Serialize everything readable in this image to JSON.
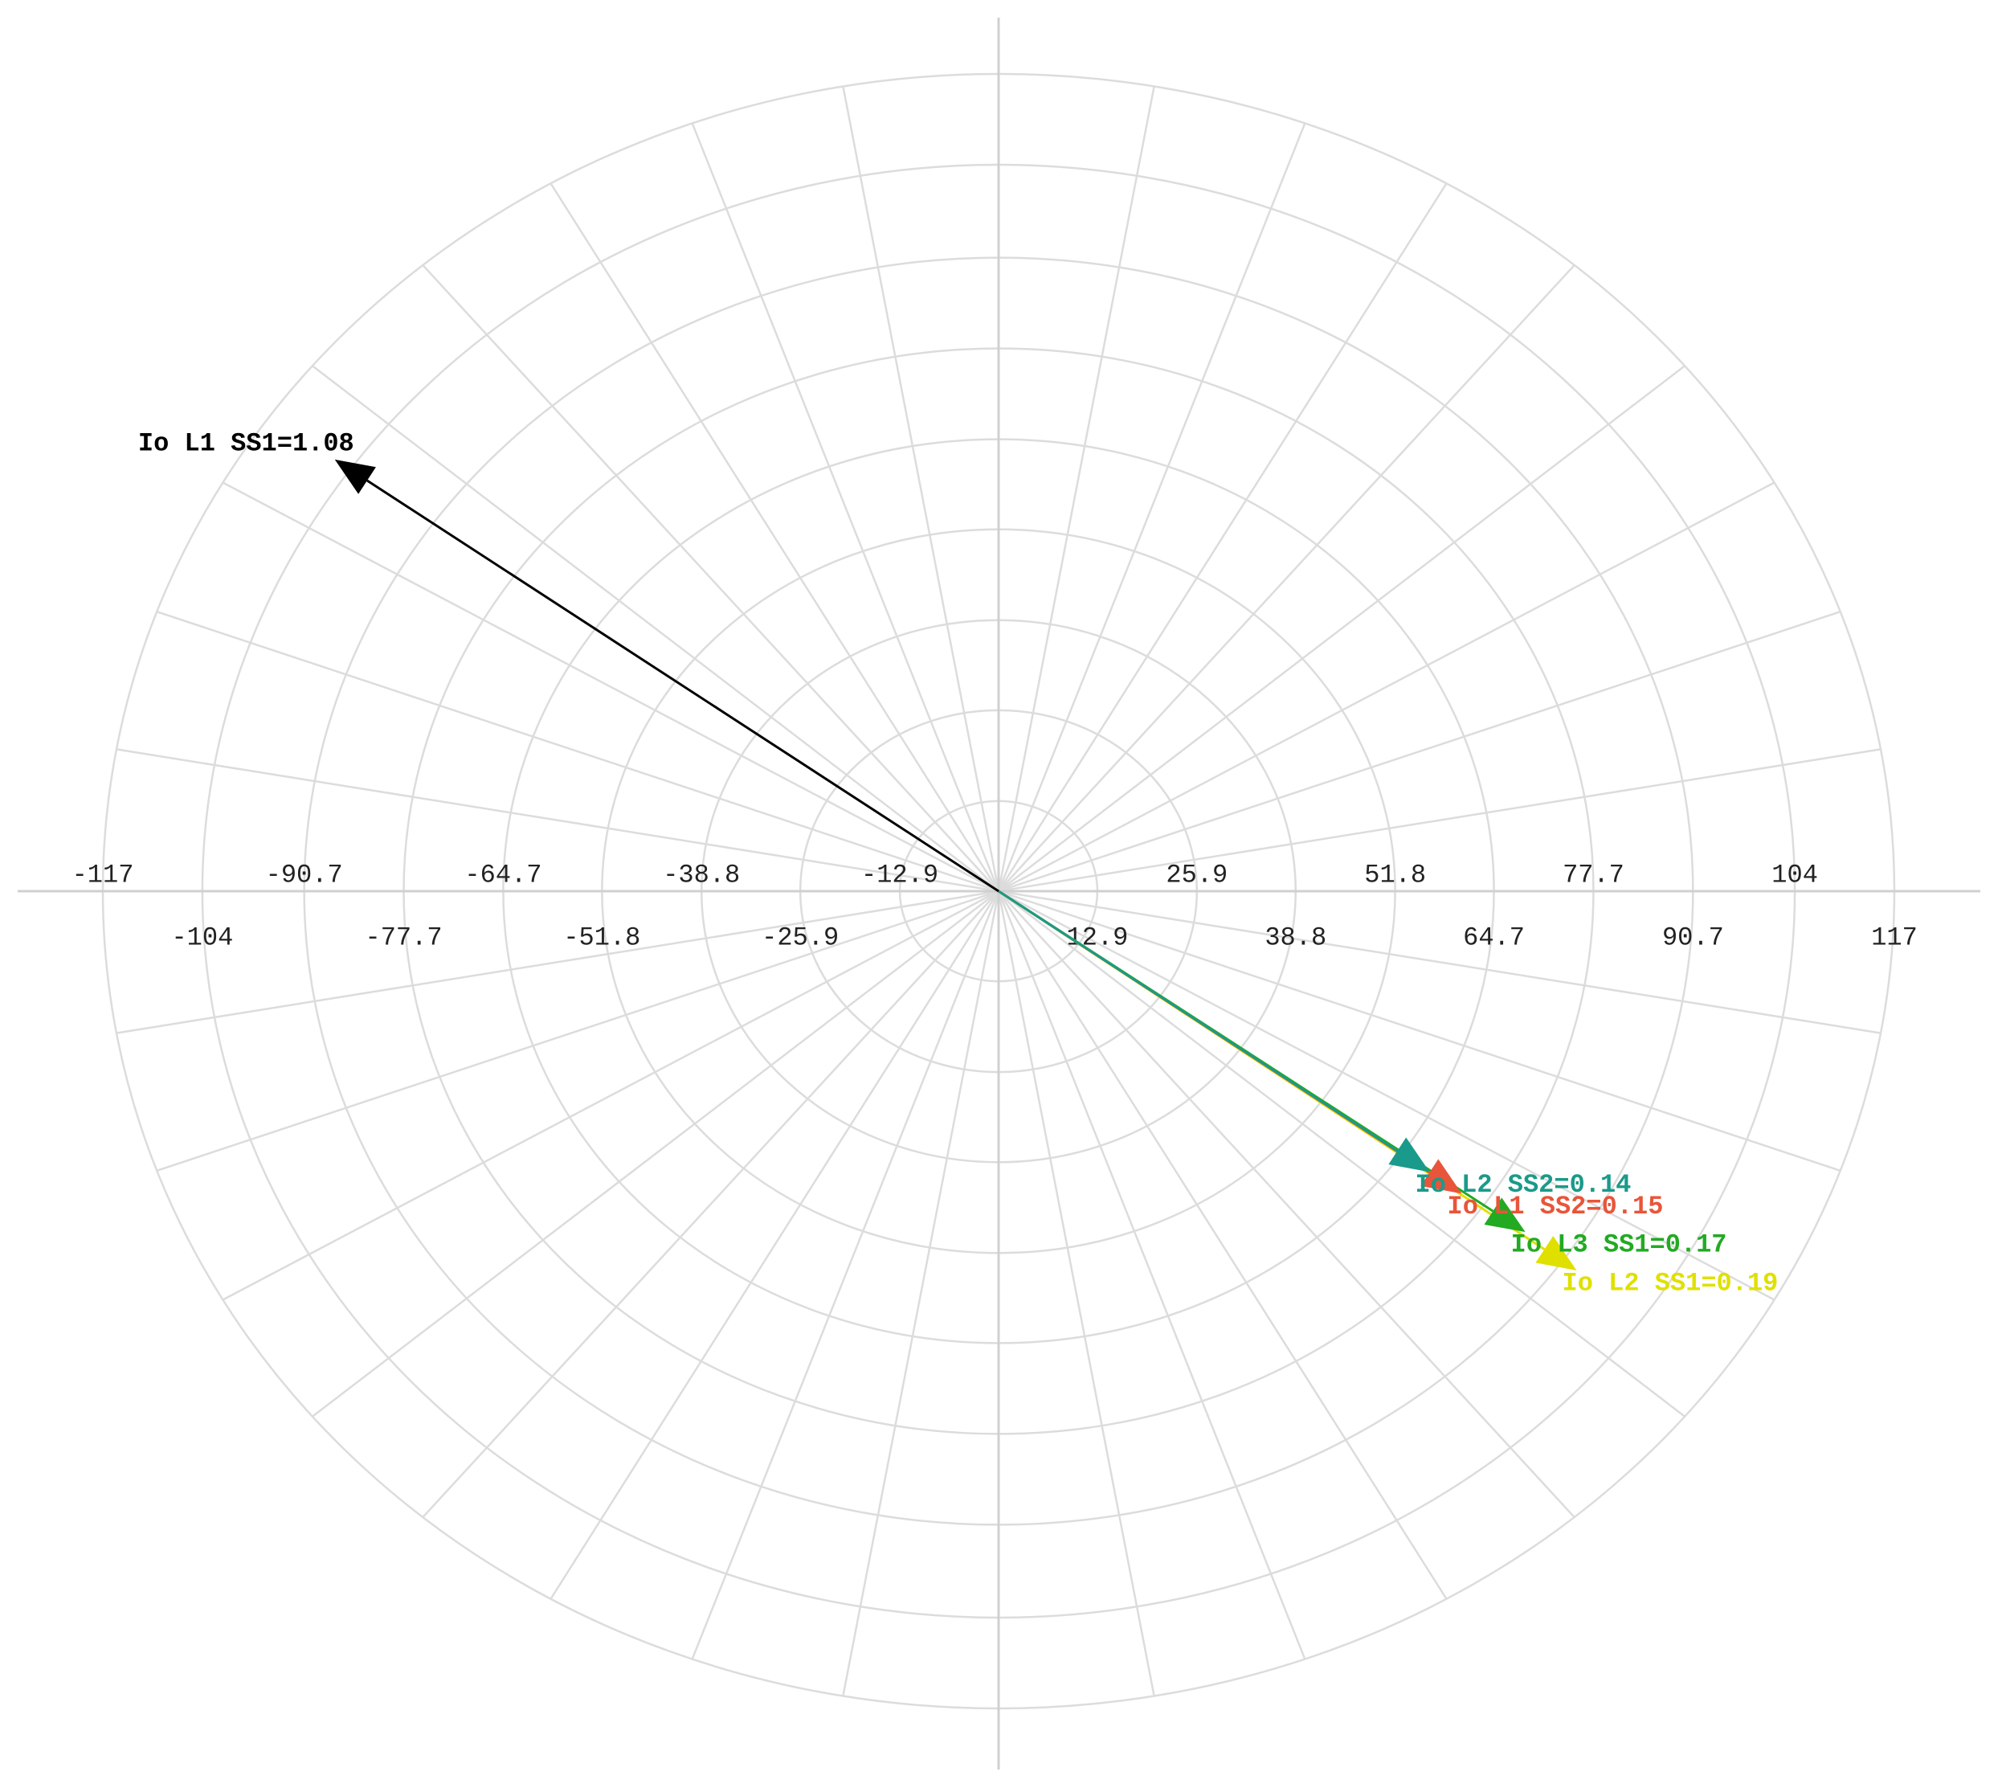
{
  "chart_data": {
    "type": "phasor",
    "xlim": [
      -117,
      117
    ],
    "ylim": [
      -117,
      117
    ],
    "xticks": [
      -117,
      -104,
      -90.7,
      -77.7,
      -64.7,
      -51.8,
      -38.8,
      -25.9,
      -12.9,
      12.9,
      25.9,
      38.8,
      51.8,
      64.7,
      77.7,
      90.7,
      104,
      117
    ],
    "grid": true,
    "series": [
      {
        "name": "Io L1 SS1=1.08",
        "color": "#000000",
        "x": -86.7,
        "y": 61.8
      },
      {
        "name": "Io L2 SS2=0.14",
        "color": "#1a9a8a",
        "x": 56.3,
        "y": -40.2
      },
      {
        "name": "Io L1 SS2=0.15",
        "color": "#e8553a",
        "x": 60.5,
        "y": -43.3
      },
      {
        "name": "Io L3 SS1=0.17",
        "color": "#22aa22",
        "x": 68.8,
        "y": -48.8
      },
      {
        "name": "Io L2 SS1=0.19",
        "color": "#e0e000",
        "x": 75.5,
        "y": -54.3
      }
    ]
  }
}
